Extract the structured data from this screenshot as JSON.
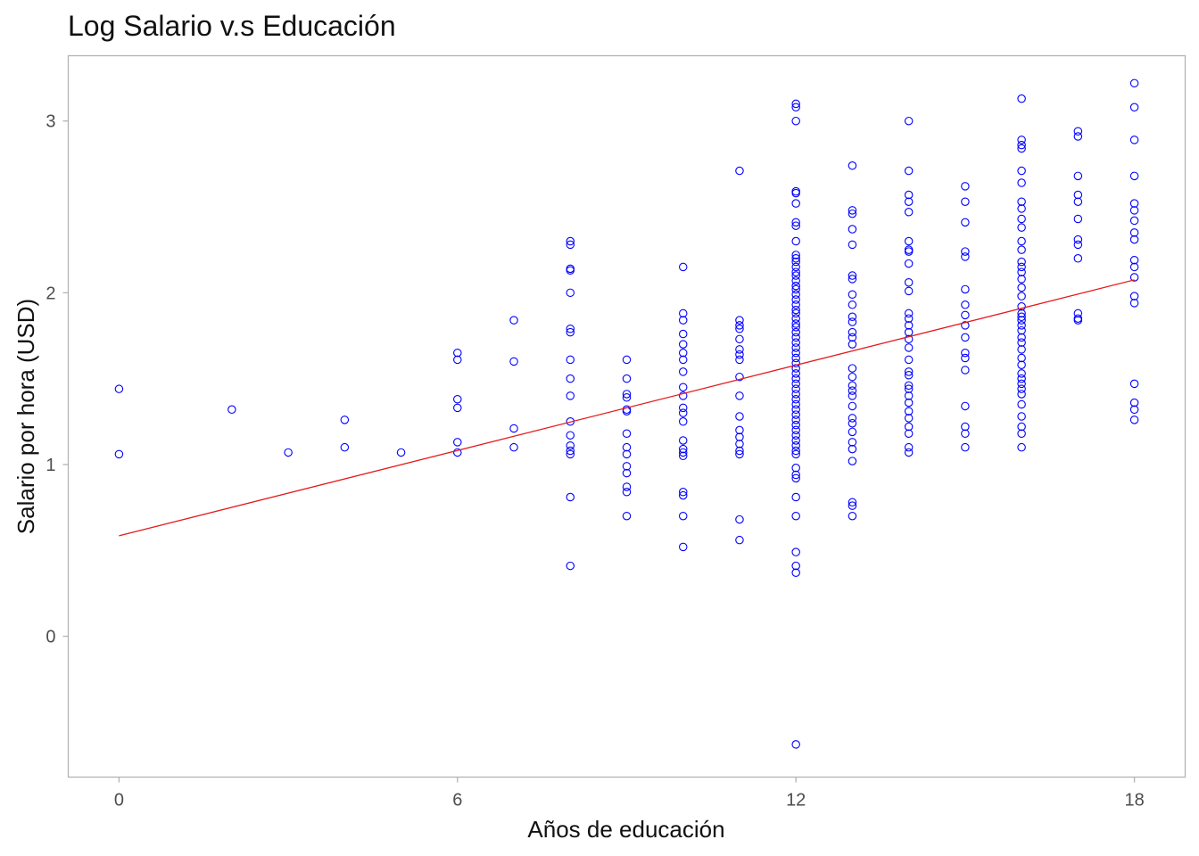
{
  "chart_data": {
    "type": "scatter",
    "title": "Log Salario v.s Educación",
    "xlabel": "Años de educación",
    "ylabel": "Salario por hora (USD)",
    "xlim": [
      -0.9,
      18.9
    ],
    "ylim": [
      -0.82,
      3.38
    ],
    "x_ticks": [
      0,
      6,
      12,
      18
    ],
    "y_ticks": [
      0,
      1,
      2,
      3
    ],
    "x_tick_labels": [
      "0",
      "6",
      "12",
      "18"
    ],
    "y_tick_labels": [
      "0",
      "1",
      "2",
      "3"
    ],
    "grid": false,
    "legend": "none",
    "point_color": "#0000ff",
    "line_color": "#e31a1c",
    "fit_line": {
      "x": [
        0,
        18
      ],
      "y": [
        0.585,
        2.075
      ]
    },
    "points": [
      [
        0,
        1.44
      ],
      [
        0,
        1.06
      ],
      [
        2,
        1.32
      ],
      [
        3,
        1.07
      ],
      [
        4,
        1.26
      ],
      [
        4,
        1.1
      ],
      [
        5,
        1.07
      ],
      [
        6,
        1.65
      ],
      [
        6,
        1.61
      ],
      [
        6,
        1.38
      ],
      [
        6,
        1.33
      ],
      [
        6,
        1.13
      ],
      [
        6,
        1.07
      ],
      [
        7,
        1.84
      ],
      [
        7,
        1.6
      ],
      [
        7,
        1.21
      ],
      [
        7,
        1.1
      ],
      [
        8,
        2.3
      ],
      [
        8,
        2.28
      ],
      [
        8,
        2.14
      ],
      [
        8,
        2.13
      ],
      [
        8,
        2.0
      ],
      [
        8,
        1.79
      ],
      [
        8,
        1.77
      ],
      [
        8,
        1.61
      ],
      [
        8,
        1.5
      ],
      [
        8,
        1.4
      ],
      [
        8,
        1.25
      ],
      [
        8,
        1.17
      ],
      [
        8,
        1.11
      ],
      [
        8,
        1.08
      ],
      [
        8,
        1.06
      ],
      [
        8,
        0.81
      ],
      [
        8,
        0.41
      ],
      [
        9,
        1.61
      ],
      [
        9,
        1.5
      ],
      [
        9,
        1.41
      ],
      [
        9,
        1.39
      ],
      [
        9,
        1.32
      ],
      [
        9,
        1.31
      ],
      [
        9,
        1.18
      ],
      [
        9,
        1.1
      ],
      [
        9,
        1.06
      ],
      [
        9,
        0.99
      ],
      [
        9,
        0.95
      ],
      [
        9,
        0.87
      ],
      [
        9,
        0.84
      ],
      [
        9,
        0.7
      ],
      [
        10,
        2.15
      ],
      [
        10,
        1.88
      ],
      [
        10,
        1.84
      ],
      [
        10,
        1.76
      ],
      [
        10,
        1.7
      ],
      [
        10,
        1.65
      ],
      [
        10,
        1.61
      ],
      [
        10,
        1.54
      ],
      [
        10,
        1.45
      ],
      [
        10,
        1.4
      ],
      [
        10,
        1.33
      ],
      [
        10,
        1.3
      ],
      [
        10,
        1.25
      ],
      [
        10,
        1.14
      ],
      [
        10,
        1.09
      ],
      [
        10,
        1.07
      ],
      [
        10,
        1.05
      ],
      [
        10,
        0.84
      ],
      [
        10,
        0.82
      ],
      [
        10,
        0.7
      ],
      [
        10,
        0.52
      ],
      [
        11,
        2.71
      ],
      [
        11,
        1.84
      ],
      [
        11,
        1.81
      ],
      [
        11,
        1.79
      ],
      [
        11,
        1.73
      ],
      [
        11,
        1.67
      ],
      [
        11,
        1.64
      ],
      [
        11,
        1.61
      ],
      [
        11,
        1.51
      ],
      [
        11,
        1.4
      ],
      [
        11,
        1.28
      ],
      [
        11,
        1.2
      ],
      [
        11,
        1.16
      ],
      [
        11,
        1.12
      ],
      [
        11,
        1.08
      ],
      [
        11,
        1.06
      ],
      [
        11,
        0.68
      ],
      [
        11,
        0.56
      ],
      [
        12,
        3.1
      ],
      [
        12,
        3.08
      ],
      [
        12,
        3.0
      ],
      [
        12,
        2.59
      ],
      [
        12,
        2.58
      ],
      [
        12,
        2.52
      ],
      [
        12,
        2.41
      ],
      [
        12,
        2.39
      ],
      [
        12,
        2.3
      ],
      [
        12,
        2.22
      ],
      [
        12,
        2.2
      ],
      [
        12,
        2.18
      ],
      [
        12,
        2.15
      ],
      [
        12,
        2.12
      ],
      [
        12,
        2.1
      ],
      [
        12,
        2.07
      ],
      [
        12,
        2.04
      ],
      [
        12,
        2.02
      ],
      [
        12,
        1.99
      ],
      [
        12,
        1.96
      ],
      [
        12,
        1.93
      ],
      [
        12,
        1.9
      ],
      [
        12,
        1.88
      ],
      [
        12,
        1.85
      ],
      [
        12,
        1.82
      ],
      [
        12,
        1.8
      ],
      [
        12,
        1.77
      ],
      [
        12,
        1.74
      ],
      [
        12,
        1.71
      ],
      [
        12,
        1.68
      ],
      [
        12,
        1.65
      ],
      [
        12,
        1.62
      ],
      [
        12,
        1.59
      ],
      [
        12,
        1.56
      ],
      [
        12,
        1.53
      ],
      [
        12,
        1.5
      ],
      [
        12,
        1.47
      ],
      [
        12,
        1.44
      ],
      [
        12,
        1.41
      ],
      [
        12,
        1.38
      ],
      [
        12,
        1.35
      ],
      [
        12,
        1.32
      ],
      [
        12,
        1.29
      ],
      [
        12,
        1.26
      ],
      [
        12,
        1.23
      ],
      [
        12,
        1.2
      ],
      [
        12,
        1.17
      ],
      [
        12,
        1.14
      ],
      [
        12,
        1.11
      ],
      [
        12,
        1.08
      ],
      [
        12,
        1.06
      ],
      [
        12,
        0.98
      ],
      [
        12,
        0.94
      ],
      [
        12,
        0.92
      ],
      [
        12,
        0.81
      ],
      [
        12,
        0.7
      ],
      [
        12,
        0.49
      ],
      [
        12,
        0.41
      ],
      [
        12,
        0.37
      ],
      [
        12,
        -0.63
      ],
      [
        13,
        2.74
      ],
      [
        13,
        2.48
      ],
      [
        13,
        2.46
      ],
      [
        13,
        2.37
      ],
      [
        13,
        2.28
      ],
      [
        13,
        2.1
      ],
      [
        13,
        2.08
      ],
      [
        13,
        1.99
      ],
      [
        13,
        1.93
      ],
      [
        13,
        1.86
      ],
      [
        13,
        1.83
      ],
      [
        13,
        1.77
      ],
      [
        13,
        1.74
      ],
      [
        13,
        1.7
      ],
      [
        13,
        1.56
      ],
      [
        13,
        1.51
      ],
      [
        13,
        1.46
      ],
      [
        13,
        1.43
      ],
      [
        13,
        1.4
      ],
      [
        13,
        1.34
      ],
      [
        13,
        1.27
      ],
      [
        13,
        1.24
      ],
      [
        13,
        1.19
      ],
      [
        13,
        1.13
      ],
      [
        13,
        1.09
      ],
      [
        13,
        1.02
      ],
      [
        13,
        0.78
      ],
      [
        13,
        0.76
      ],
      [
        13,
        0.7
      ],
      [
        14,
        3.0
      ],
      [
        14,
        2.71
      ],
      [
        14,
        2.57
      ],
      [
        14,
        2.53
      ],
      [
        14,
        2.47
      ],
      [
        14,
        2.3
      ],
      [
        14,
        2.25
      ],
      [
        14,
        2.24
      ],
      [
        14,
        2.17
      ],
      [
        14,
        2.06
      ],
      [
        14,
        2.01
      ],
      [
        14,
        1.88
      ],
      [
        14,
        1.85
      ],
      [
        14,
        1.81
      ],
      [
        14,
        1.77
      ],
      [
        14,
        1.73
      ],
      [
        14,
        1.68
      ],
      [
        14,
        1.61
      ],
      [
        14,
        1.54
      ],
      [
        14,
        1.52
      ],
      [
        14,
        1.46
      ],
      [
        14,
        1.44
      ],
      [
        14,
        1.4
      ],
      [
        14,
        1.36
      ],
      [
        14,
        1.31
      ],
      [
        14,
        1.27
      ],
      [
        14,
        1.22
      ],
      [
        14,
        1.18
      ],
      [
        14,
        1.1
      ],
      [
        14,
        1.07
      ],
      [
        15,
        2.62
      ],
      [
        15,
        2.53
      ],
      [
        15,
        2.41
      ],
      [
        15,
        2.24
      ],
      [
        15,
        2.21
      ],
      [
        15,
        2.02
      ],
      [
        15,
        1.93
      ],
      [
        15,
        1.87
      ],
      [
        15,
        1.81
      ],
      [
        15,
        1.74
      ],
      [
        15,
        1.65
      ],
      [
        15,
        1.62
      ],
      [
        15,
        1.55
      ],
      [
        15,
        1.34
      ],
      [
        15,
        1.22
      ],
      [
        15,
        1.18
      ],
      [
        15,
        1.1
      ],
      [
        16,
        3.13
      ],
      [
        16,
        2.89
      ],
      [
        16,
        2.86
      ],
      [
        16,
        2.84
      ],
      [
        16,
        2.71
      ],
      [
        16,
        2.64
      ],
      [
        16,
        2.53
      ],
      [
        16,
        2.49
      ],
      [
        16,
        2.43
      ],
      [
        16,
        2.38
      ],
      [
        16,
        2.3
      ],
      [
        16,
        2.25
      ],
      [
        16,
        2.18
      ],
      [
        16,
        2.15
      ],
      [
        16,
        2.12
      ],
      [
        16,
        2.08
      ],
      [
        16,
        2.03
      ],
      [
        16,
        1.98
      ],
      [
        16,
        1.92
      ],
      [
        16,
        1.88
      ],
      [
        16,
        1.86
      ],
      [
        16,
        1.84
      ],
      [
        16,
        1.81
      ],
      [
        16,
        1.78
      ],
      [
        16,
        1.74
      ],
      [
        16,
        1.71
      ],
      [
        16,
        1.67
      ],
      [
        16,
        1.62
      ],
      [
        16,
        1.58
      ],
      [
        16,
        1.53
      ],
      [
        16,
        1.5
      ],
      [
        16,
        1.47
      ],
      [
        16,
        1.44
      ],
      [
        16,
        1.41
      ],
      [
        16,
        1.35
      ],
      [
        16,
        1.28
      ],
      [
        16,
        1.22
      ],
      [
        16,
        1.18
      ],
      [
        16,
        1.1
      ],
      [
        17,
        2.94
      ],
      [
        17,
        2.91
      ],
      [
        17,
        2.68
      ],
      [
        17,
        2.57
      ],
      [
        17,
        2.53
      ],
      [
        17,
        2.43
      ],
      [
        17,
        2.31
      ],
      [
        17,
        2.28
      ],
      [
        17,
        2.2
      ],
      [
        17,
        1.88
      ],
      [
        17,
        1.85
      ],
      [
        17,
        1.84
      ],
      [
        18,
        3.22
      ],
      [
        18,
        3.08
      ],
      [
        18,
        2.89
      ],
      [
        18,
        2.68
      ],
      [
        18,
        2.52
      ],
      [
        18,
        2.48
      ],
      [
        18,
        2.42
      ],
      [
        18,
        2.35
      ],
      [
        18,
        2.31
      ],
      [
        18,
        2.19
      ],
      [
        18,
        2.15
      ],
      [
        18,
        2.09
      ],
      [
        18,
        1.98
      ],
      [
        18,
        1.94
      ],
      [
        18,
        1.47
      ],
      [
        18,
        1.36
      ],
      [
        18,
        1.32
      ],
      [
        18,
        1.26
      ]
    ]
  }
}
